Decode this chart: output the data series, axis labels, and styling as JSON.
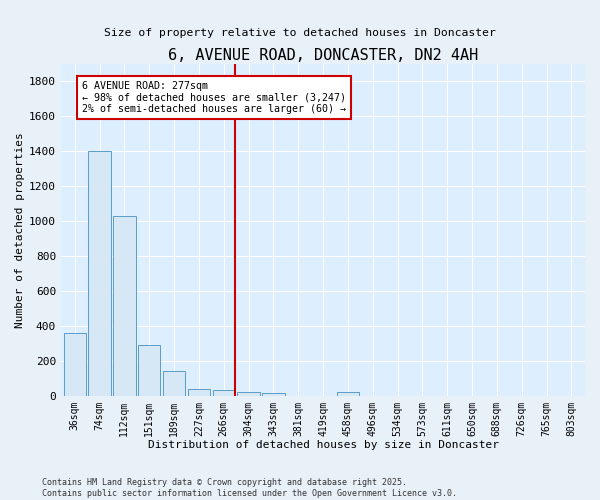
{
  "title": "6, AVENUE ROAD, DONCASTER, DN2 4AH",
  "subtitle": "Size of property relative to detached houses in Doncaster",
  "xlabel": "Distribution of detached houses by size in Doncaster",
  "ylabel": "Number of detached properties",
  "bar_color": "#d6e8f5",
  "bar_edge_color": "#5b9dc9",
  "background_color": "#ddeeff",
  "grid_color": "#ffffff",
  "categories": [
    "36sqm",
    "74sqm",
    "112sqm",
    "151sqm",
    "189sqm",
    "227sqm",
    "266sqm",
    "304sqm",
    "343sqm",
    "381sqm",
    "419sqm",
    "458sqm",
    "496sqm",
    "534sqm",
    "573sqm",
    "611sqm",
    "650sqm",
    "688sqm",
    "726sqm",
    "765sqm",
    "803sqm"
  ],
  "values": [
    360,
    1400,
    1030,
    290,
    140,
    40,
    35,
    20,
    15,
    0,
    0,
    20,
    0,
    0,
    0,
    0,
    0,
    0,
    0,
    0,
    0
  ],
  "ylim": [
    0,
    1900
  ],
  "yticks": [
    0,
    200,
    400,
    600,
    800,
    1000,
    1200,
    1400,
    1600,
    1800
  ],
  "vline_color": "#cc0000",
  "annotation_title": "6 AVENUE ROAD: 277sqm",
  "annotation_line1": "← 98% of detached houses are smaller (3,247)",
  "annotation_line2": "2% of semi-detached houses are larger (60) →",
  "annotation_box_color": "#ffffff",
  "annotation_box_edge_color": "#cc0000",
  "footer_line1": "Contains HM Land Registry data © Crown copyright and database right 2025.",
  "footer_line2": "Contains public sector information licensed under the Open Government Licence v3.0.",
  "fig_bg": "#e8f0f8"
}
